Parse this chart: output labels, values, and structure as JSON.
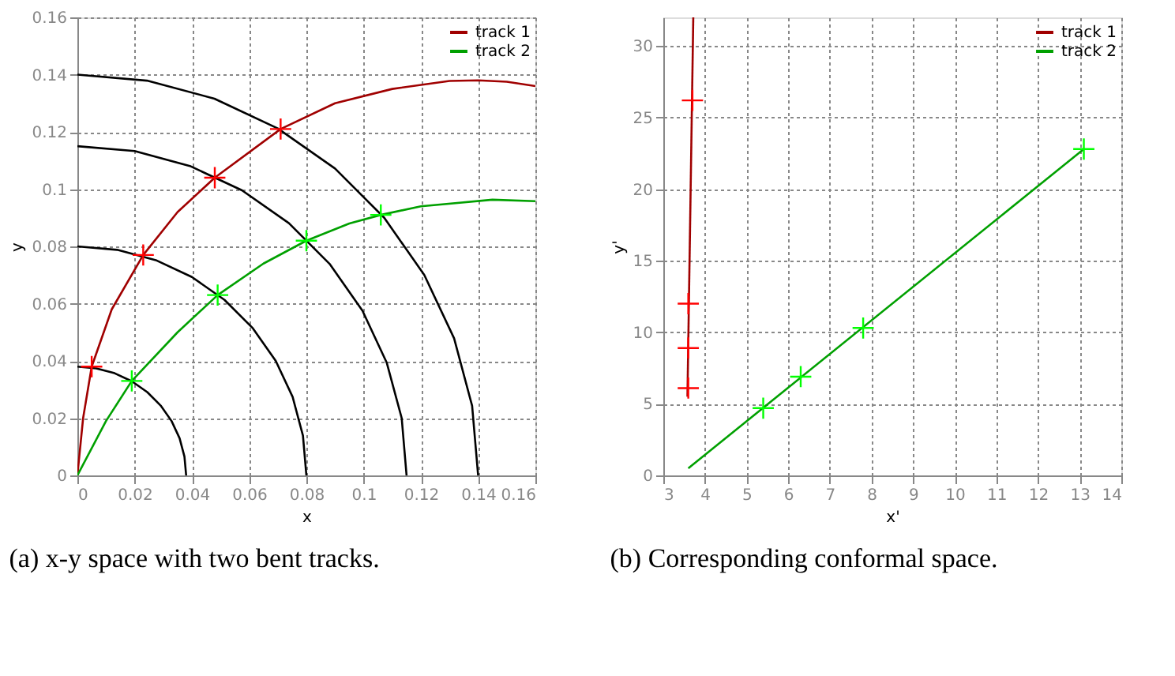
{
  "chart_data": [
    {
      "type": "line",
      "xlabel": "x",
      "ylabel": "y",
      "xlim": [
        0,
        0.16
      ],
      "ylim": [
        0,
        0.16
      ],
      "xticks": [
        0,
        0.02,
        0.04,
        0.06,
        0.08,
        0.1,
        0.12,
        0.14,
        0.16
      ],
      "yticks": [
        0,
        0.02,
        0.04,
        0.06,
        0.08,
        0.1,
        0.12,
        0.14,
        0.16
      ],
      "grid": true,
      "legend": "top right",
      "annotations": [
        "(a) x-y space with two bent tracks."
      ],
      "series": [
        {
          "color": "#000000",
          "x": [
            0.038,
            0.0374,
            0.0357,
            0.0329,
            0.0291,
            0.0244,
            0.019,
            0.013,
            0.0066,
            0
          ],
          "values": [
            0,
            0.0066,
            0.013,
            0.019,
            0.0244,
            0.0291,
            0.0329,
            0.0357,
            0.0374,
            0.038
          ]
        },
        {
          "color": "#000000",
          "x": [
            0.08,
            0.0788,
            0.0752,
            0.0693,
            0.0613,
            0.0514,
            0.04,
            0.0274,
            0.0139,
            0
          ],
          "values": [
            0,
            0.0139,
            0.0274,
            0.04,
            0.0514,
            0.0613,
            0.0693,
            0.0752,
            0.0788,
            0.08
          ]
        },
        {
          "color": "#000000",
          "x": [
            0.115,
            0.1133,
            0.1081,
            0.0996,
            0.0881,
            0.0739,
            0.0575,
            0.0393,
            0.02,
            0
          ],
          "values": [
            0,
            0.02,
            0.0393,
            0.0575,
            0.0739,
            0.0881,
            0.0996,
            0.1081,
            0.1133,
            0.115
          ]
        },
        {
          "color": "#000000",
          "x": [
            0.14,
            0.1379,
            0.1316,
            0.1212,
            0.1072,
            0.09,
            0.07,
            0.0479,
            0.0243,
            0
          ],
          "values": [
            0,
            0.0243,
            0.0479,
            0.07,
            0.09,
            0.1072,
            0.1212,
            0.1316,
            0.1379,
            0.14
          ]
        },
        {
          "name": "track 1",
          "color": "#a00000",
          "x": [
            0,
            0.002,
            0.005,
            0.012,
            0.023,
            0.035,
            0.048,
            0.071,
            0.09,
            0.11,
            0.13,
            0.14,
            0.15,
            0.16
          ],
          "values": [
            0,
            0.02,
            0.038,
            0.058,
            0.077,
            0.092,
            0.104,
            0.121,
            0.13,
            0.135,
            0.1378,
            0.138,
            0.1375,
            0.136
          ]
        },
        {
          "name": "track 2",
          "color": "#00a000",
          "x": [
            0,
            0.01,
            0.019,
            0.035,
            0.049,
            0.065,
            0.08,
            0.095,
            0.106,
            0.12,
            0.145,
            0.16
          ],
          "values": [
            0,
            0.019,
            0.033,
            0.05,
            0.063,
            0.074,
            0.082,
            0.088,
            0.091,
            0.094,
            0.0963,
            0.0958
          ]
        },
        {
          "type": "scatter",
          "marker": "cross",
          "color": "#ff0000",
          "x": [
            0.005,
            0.023,
            0.048,
            0.071
          ],
          "values": [
            0.038,
            0.077,
            0.104,
            0.121
          ]
        },
        {
          "type": "scatter",
          "marker": "cross",
          "color": "#00ff00",
          "x": [
            0.019,
            0.049,
            0.08,
            0.106
          ],
          "values": [
            0.033,
            0.063,
            0.082,
            0.091
          ]
        }
      ]
    },
    {
      "type": "line",
      "xlabel": "x'",
      "ylabel": "y'",
      "xlim": [
        3,
        14
      ],
      "ylim": [
        0,
        32
      ],
      "xticks": [
        3,
        4,
        5,
        6,
        7,
        8,
        9,
        10,
        11,
        12,
        13,
        14
      ],
      "yticks": [
        0,
        5,
        10,
        15,
        20,
        25,
        30
      ],
      "grid": true,
      "legend": "top right",
      "annotations": [
        "(b) Corresponding conformal space."
      ],
      "series": [
        {
          "name": "track 1",
          "color": "#a00000",
          "x": [
            3.58,
            3.72
          ],
          "values": [
            5.5,
            32
          ]
        },
        {
          "name": "track 2",
          "color": "#00a000",
          "x": [
            3.6,
            13.1
          ],
          "values": [
            0.5,
            22.8
          ]
        },
        {
          "type": "scatter",
          "marker": "cross",
          "color": "#ff0000",
          "x": [
            3.6,
            3.6,
            3.6,
            3.7
          ],
          "values": [
            6.1,
            8.9,
            12,
            26.2
          ]
        },
        {
          "type": "scatter",
          "marker": "cross",
          "color": "#00ff00",
          "x": [
            5.4,
            6.3,
            7.8,
            13.1
          ],
          "values": [
            4.7,
            6.9,
            10.3,
            22.8
          ]
        }
      ]
    }
  ]
}
